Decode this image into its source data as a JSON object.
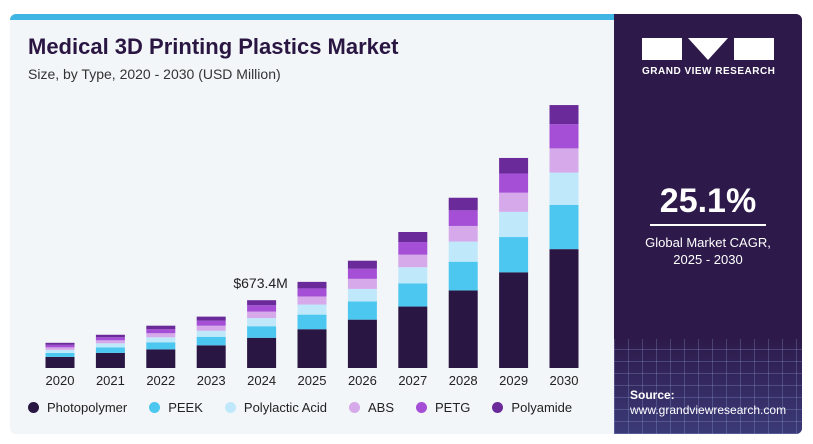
{
  "header": {
    "title": "Medical 3D Printing Plastics Market",
    "subtitle": "Size, by Type, 2020 - 2030 (USD Million)"
  },
  "brand": {
    "logo_text": "GRAND VIEW RESEARCH"
  },
  "cagr": {
    "value": "25.1%",
    "label_line1": "Global Market CAGR,",
    "label_line2": "2025 - 2030"
  },
  "source": {
    "label": "Source:",
    "url": "www.grandviewresearch.com"
  },
  "colors": {
    "photopolymer": "#2a1642",
    "peek": "#4cc7f0",
    "polylactic": "#bfe9fb",
    "abs": "#d5a9ea",
    "petg": "#a54fd6",
    "polyamide": "#6a2a9a",
    "panel": "#2d1a4a",
    "accent_bar": "#3fb5e3"
  },
  "chart_data": {
    "type": "bar",
    "stacked": true,
    "title": "Medical 3D Printing Plastics Market",
    "subtitle": "Size, by Type, 2020 - 2030 (USD Million)",
    "categories": [
      "2020",
      "2021",
      "2022",
      "2023",
      "2024",
      "2025",
      "2026",
      "2027",
      "2028",
      "2029",
      "2030"
    ],
    "series": [
      {
        "name": "Photopolymer",
        "color": "#2a1642",
        "values": [
          110,
          150,
          185,
          225,
          300,
          385,
          480,
          610,
          770,
          950,
          1180
        ]
      },
      {
        "name": "PEEK",
        "color": "#4cc7f0",
        "values": [
          40,
          55,
          70,
          85,
          115,
          145,
          180,
          230,
          285,
          350,
          440
        ]
      },
      {
        "name": "Polylactic Acid",
        "color": "#bfe9fb",
        "values": [
          30,
          40,
          50,
          60,
          80,
          100,
          125,
          160,
          200,
          250,
          320
        ]
      },
      {
        "name": "ABS",
        "color": "#d5a9ea",
        "values": [
          25,
          30,
          40,
          50,
          65,
          80,
          100,
          125,
          155,
          190,
          240
        ]
      },
      {
        "name": "PETG",
        "color": "#a54fd6",
        "values": [
          25,
          30,
          40,
          50,
          63,
          80,
          100,
          125,
          155,
          190,
          240
        ]
      },
      {
        "name": "Polyamide",
        "color": "#6a2a9a",
        "values": [
          20,
          25,
          35,
          40,
          50,
          65,
          80,
          100,
          125,
          155,
          190
        ]
      }
    ],
    "annotation": {
      "category": "2024",
      "text": "$673.4M"
    },
    "legend": "bottom",
    "grid": false,
    "ylim": [
      0,
      2700
    ]
  }
}
